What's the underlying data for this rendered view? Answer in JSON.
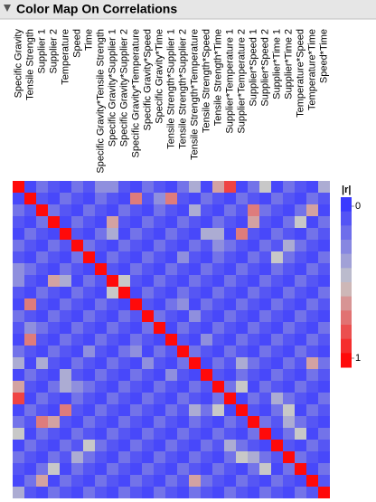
{
  "chart_data": {
    "type": "heatmap",
    "title": "Color Map On Correlations",
    "categories": [
      "Specific Gravity",
      "Tensile Strength",
      "Supplier 1",
      "Supplier 2",
      "Temperature",
      "Speed",
      "Time",
      "Specific Gravity*Tensile Strength",
      "Specific Gravity*Supplier 1",
      "Specific Gravity*Supplier 2",
      "Specific Gravity*Temperature",
      "Specific Gravity*Speed",
      "Specific Gravity*Time",
      "Tensile Strength*Supplier 1",
      "Tensile Strength*Supplier 2",
      "Tensile Strength*Temperature",
      "Tensile Strength*Speed",
      "Tensile Strength*Time",
      "Supplier*Temperature 1",
      "Supplier*Temperature 2",
      "Supplier*Speed 1",
      "Supplier*Speed 2",
      "Supplier*Time 1",
      "Supplier*Time 2",
      "Temperature*Speed",
      "Temperature*Time",
      "Speed*Time"
    ],
    "colors": [
      "#3a3aff",
      "#c8c8c8",
      "#ff0a0a"
    ],
    "legend": {
      "title": "|r|",
      "ticks": [
        0,
        1
      ]
    },
    "values": [
      [
        1,
        0.05,
        0.2,
        0.1,
        0.05,
        0.2,
        0.1,
        0.3,
        0.3,
        0.1,
        0.05,
        0.2,
        0.1,
        0.05,
        0.2,
        0.4,
        0.05,
        0.6,
        0.85,
        0.05,
        0.2,
        0.5,
        0.05,
        0.2,
        0.1,
        0.05,
        0.4
      ],
      [
        0.05,
        1,
        0.1,
        0.05,
        0.2,
        0.1,
        0.05,
        0.2,
        0.1,
        0.05,
        0.7,
        0.1,
        0.3,
        0.7,
        0.1,
        0.05,
        0.2,
        0.1,
        0.05,
        0.2,
        0.1,
        0.05,
        0.2,
        0.1,
        0.05,
        0.2,
        0.1
      ],
      [
        0.2,
        0.1,
        1,
        0.2,
        0.1,
        0.05,
        0.2,
        0.1,
        0.05,
        0.2,
        0.1,
        0.05,
        0.2,
        0.1,
        0.05,
        0.4,
        0.1,
        0.05,
        0.2,
        0.1,
        0.7,
        0.2,
        0.1,
        0.05,
        0.2,
        0.6,
        0.05
      ],
      [
        0.1,
        0.05,
        0.2,
        1,
        0.05,
        0.2,
        0.1,
        0.05,
        0.6,
        0.1,
        0.05,
        0.2,
        0.1,
        0.05,
        0.2,
        0.1,
        0.05,
        0.2,
        0.1,
        0.05,
        0.6,
        0.1,
        0.05,
        0.2,
        0.5,
        0.05,
        0.2
      ],
      [
        0.05,
        0.2,
        0.1,
        0.05,
        1,
        0.1,
        0.05,
        0.2,
        0.4,
        0.05,
        0.2,
        0.1,
        0.05,
        0.2,
        0.1,
        0.05,
        0.4,
        0.4,
        0.05,
        0.7,
        0.1,
        0.05,
        0.2,
        0.1,
        0.05,
        0.2,
        0.1
      ],
      [
        0.2,
        0.1,
        0.05,
        0.2,
        0.1,
        1,
        0.2,
        0.1,
        0.05,
        0.2,
        0.1,
        0.05,
        0.2,
        0.1,
        0.05,
        0.2,
        0.1,
        0.3,
        0.2,
        0.1,
        0.05,
        0.2,
        0.1,
        0.4,
        0.2,
        0.1,
        0.05
      ],
      [
        0.1,
        0.05,
        0.2,
        0.1,
        0.05,
        0.2,
        1,
        0.05,
        0.2,
        0.1,
        0.05,
        0.2,
        0.1,
        0.05,
        0.3,
        0.1,
        0.05,
        0.2,
        0.1,
        0.05,
        0.2,
        0.1,
        0.5,
        0.2,
        0.1,
        0.05,
        0.2
      ],
      [
        0.3,
        0.2,
        0.1,
        0.05,
        0.2,
        0.1,
        0.05,
        1,
        0.1,
        0.05,
        0.2,
        0.1,
        0.05,
        0.2,
        0.1,
        0.05,
        0.2,
        0.1,
        0.05,
        0.2,
        0.1,
        0.05,
        0.2,
        0.1,
        0.05,
        0.2,
        0.1
      ],
      [
        0.3,
        0.1,
        0.05,
        0.6,
        0.4,
        0.05,
        0.2,
        0.1,
        1,
        0.5,
        0.1,
        0.05,
        0.2,
        0.1,
        0.05,
        0.2,
        0.1,
        0.05,
        0.2,
        0.1,
        0.05,
        0.2,
        0.1,
        0.05,
        0.2,
        0.1,
        0.05
      ],
      [
        0.1,
        0.05,
        0.2,
        0.1,
        0.05,
        0.2,
        0.1,
        0.05,
        0.5,
        1,
        0.05,
        0.2,
        0.1,
        0.05,
        0.2,
        0.1,
        0.05,
        0.2,
        0.1,
        0.05,
        0.2,
        0.1,
        0.05,
        0.2,
        0.1,
        0.05,
        0.2
      ],
      [
        0.05,
        0.7,
        0.1,
        0.05,
        0.2,
        0.1,
        0.05,
        0.2,
        0.1,
        0.05,
        1,
        0.1,
        0.05,
        0.2,
        0.3,
        0.05,
        0.2,
        0.1,
        0.05,
        0.2,
        0.1,
        0.05,
        0.2,
        0.1,
        0.05,
        0.2,
        0.1
      ],
      [
        0.2,
        0.1,
        0.05,
        0.2,
        0.1,
        0.05,
        0.2,
        0.1,
        0.05,
        0.2,
        0.1,
        1,
        0.2,
        0.1,
        0.05,
        0.3,
        0.1,
        0.05,
        0.2,
        0.1,
        0.05,
        0.2,
        0.1,
        0.05,
        0.2,
        0.1,
        0.05
      ],
      [
        0.1,
        0.3,
        0.2,
        0.1,
        0.05,
        0.2,
        0.1,
        0.05,
        0.2,
        0.1,
        0.05,
        0.2,
        1,
        0.05,
        0.2,
        0.1,
        0.05,
        0.2,
        0.1,
        0.05,
        0.2,
        0.1,
        0.05,
        0.2,
        0.1,
        0.05,
        0.2
      ],
      [
        0.05,
        0.7,
        0.1,
        0.05,
        0.2,
        0.1,
        0.05,
        0.2,
        0.1,
        0.05,
        0.2,
        0.1,
        0.05,
        1,
        0.1,
        0.05,
        0.3,
        0.1,
        0.05,
        0.2,
        0.1,
        0.05,
        0.2,
        0.1,
        0.05,
        0.2,
        0.1
      ],
      [
        0.2,
        0.1,
        0.05,
        0.2,
        0.1,
        0.05,
        0.3,
        0.1,
        0.05,
        0.2,
        0.3,
        0.05,
        0.2,
        0.1,
        1,
        0.2,
        0.1,
        0.05,
        0.2,
        0.1,
        0.05,
        0.2,
        0.1,
        0.05,
        0.2,
        0.1,
        0.05
      ],
      [
        0.4,
        0.05,
        0.4,
        0.1,
        0.05,
        0.2,
        0.1,
        0.05,
        0.2,
        0.1,
        0.05,
        0.3,
        0.1,
        0.05,
        0.2,
        1,
        0.05,
        0.2,
        0.1,
        0.4,
        0.2,
        0.1,
        0.05,
        0.2,
        0.1,
        0.6,
        0.2
      ],
      [
        0.05,
        0.2,
        0.1,
        0.05,
        0.4,
        0.1,
        0.05,
        0.2,
        0.1,
        0.05,
        0.2,
        0.1,
        0.05,
        0.3,
        0.1,
        0.05,
        1,
        0.1,
        0.05,
        0.2,
        0.1,
        0.05,
        0.2,
        0.1,
        0.05,
        0.2,
        0.1
      ],
      [
        0.6,
        0.1,
        0.05,
        0.2,
        0.4,
        0.3,
        0.2,
        0.1,
        0.05,
        0.2,
        0.1,
        0.05,
        0.2,
        0.1,
        0.05,
        0.2,
        0.1,
        1,
        0.2,
        0.5,
        0.05,
        0.2,
        0.1,
        0.05,
        0.2,
        0.1,
        0.05
      ],
      [
        0.85,
        0.05,
        0.2,
        0.1,
        0.05,
        0.2,
        0.1,
        0.05,
        0.2,
        0.1,
        0.05,
        0.2,
        0.1,
        0.05,
        0.2,
        0.1,
        0.05,
        0.2,
        1,
        0.05,
        0.2,
        0.1,
        0.4,
        0.2,
        0.1,
        0.05,
        0.2
      ],
      [
        0.05,
        0.2,
        0.1,
        0.05,
        0.7,
        0.1,
        0.05,
        0.2,
        0.1,
        0.05,
        0.2,
        0.1,
        0.05,
        0.2,
        0.1,
        0.4,
        0.2,
        0.5,
        0.05,
        1,
        0.1,
        0.05,
        0.2,
        0.5,
        0.05,
        0.2,
        0.1
      ],
      [
        0.2,
        0.1,
        0.7,
        0.6,
        0.1,
        0.05,
        0.2,
        0.1,
        0.05,
        0.2,
        0.1,
        0.05,
        0.2,
        0.1,
        0.05,
        0.2,
        0.1,
        0.05,
        0.2,
        0.1,
        1,
        0.2,
        0.1,
        0.4,
        0.2,
        0.1,
        0.05
      ],
      [
        0.5,
        0.05,
        0.2,
        0.1,
        0.05,
        0.2,
        0.1,
        0.05,
        0.2,
        0.1,
        0.05,
        0.2,
        0.1,
        0.05,
        0.2,
        0.1,
        0.05,
        0.2,
        0.1,
        0.05,
        0.2,
        1,
        0.05,
        0.2,
        0.5,
        0.05,
        0.2
      ],
      [
        0.05,
        0.2,
        0.1,
        0.05,
        0.2,
        0.1,
        0.5,
        0.2,
        0.1,
        0.05,
        0.2,
        0.1,
        0.05,
        0.2,
        0.1,
        0.05,
        0.2,
        0.1,
        0.4,
        0.2,
        0.1,
        0.05,
        1,
        0.1,
        0.05,
        0.2,
        0.1
      ],
      [
        0.2,
        0.1,
        0.05,
        0.2,
        0.1,
        0.4,
        0.2,
        0.1,
        0.05,
        0.2,
        0.1,
        0.05,
        0.2,
        0.1,
        0.05,
        0.2,
        0.1,
        0.05,
        0.2,
        0.5,
        0.4,
        0.2,
        0.1,
        1,
        0.2,
        0.1,
        0.05
      ],
      [
        0.1,
        0.05,
        0.2,
        0.5,
        0.05,
        0.2,
        0.1,
        0.05,
        0.2,
        0.1,
        0.05,
        0.2,
        0.1,
        0.05,
        0.2,
        0.1,
        0.05,
        0.2,
        0.1,
        0.05,
        0.2,
        0.5,
        0.05,
        0.2,
        1,
        0.05,
        0.2
      ],
      [
        0.05,
        0.2,
        0.6,
        0.05,
        0.2,
        0.1,
        0.05,
        0.2,
        0.1,
        0.05,
        0.2,
        0.1,
        0.05,
        0.2,
        0.1,
        0.6,
        0.2,
        0.1,
        0.05,
        0.2,
        0.1,
        0.05,
        0.2,
        0.1,
        0.05,
        1,
        0.1
      ],
      [
        0.4,
        0.1,
        0.05,
        0.2,
        0.1,
        0.05,
        0.2,
        0.1,
        0.05,
        0.2,
        0.1,
        0.05,
        0.2,
        0.1,
        0.05,
        0.2,
        0.1,
        0.05,
        0.2,
        0.1,
        0.05,
        0.2,
        0.1,
        0.05,
        0.2,
        0.1,
        1
      ]
    ]
  }
}
